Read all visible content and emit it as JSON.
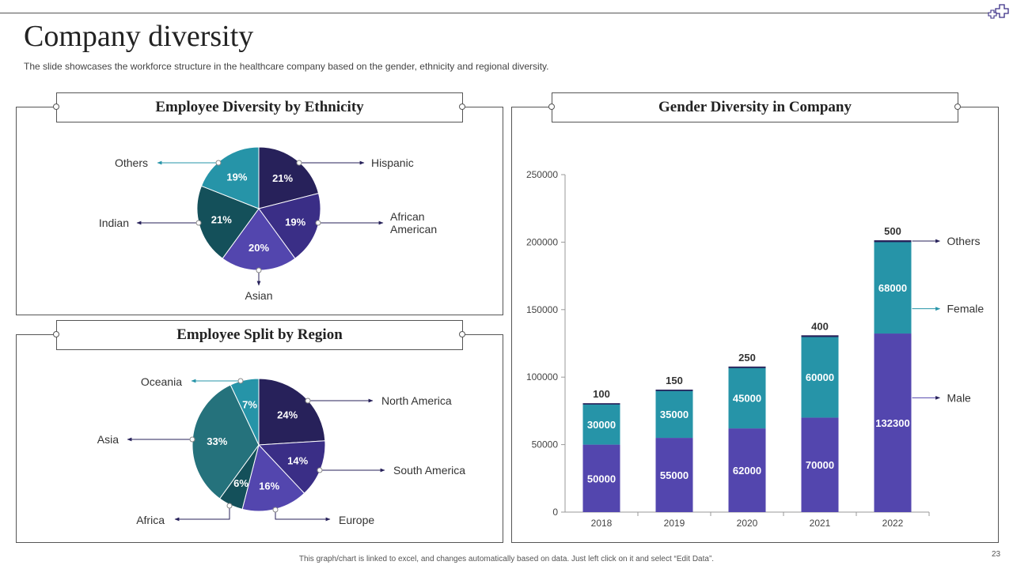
{
  "slide": {
    "title": "Company diversity",
    "subtitle": "The slide showcases the workforce structure in the healthcare company based on the gender, ethnicity and regional diversity.",
    "footer": "This graph/chart is linked to excel, and changes automatically based on data. Just left click on it and select “Edit Data”.",
    "page_number": "23"
  },
  "colors": {
    "navy": "#27215a",
    "indigo": "#3a2e86",
    "violet": "#5346ae",
    "teal": "#2694a8",
    "dark_teal": "#14505a",
    "mid_teal": "#25727c",
    "male": "#5346ae",
    "female": "#2694a8",
    "arrow_dark": "#27215a",
    "arrow_teal": "#2694a8"
  },
  "chart_data": [
    {
      "type": "pie",
      "title": "Employee Diversity by Ethnicity",
      "slices": [
        {
          "label": "Hispanic",
          "value": 21,
          "display": "21%"
        },
        {
          "label": "African American",
          "value": 19,
          "display": "19%"
        },
        {
          "label": "Asian",
          "value": 20,
          "display": "20%"
        },
        {
          "label": "Indian",
          "value": 21,
          "display": "21%"
        },
        {
          "label": "Others",
          "value": 19,
          "display": "19%"
        }
      ]
    },
    {
      "type": "pie",
      "title": "Employee Split by Region",
      "slices": [
        {
          "label": "North America",
          "value": 24,
          "display": "24%"
        },
        {
          "label": "South America",
          "value": 14,
          "display": "14%"
        },
        {
          "label": "Europe",
          "value": 16,
          "display": "16%"
        },
        {
          "label": "Africa",
          "value": 6,
          "display": "6%"
        },
        {
          "label": "Asia",
          "value": 33,
          "display": "33%"
        },
        {
          "label": "Oceania",
          "value": 7,
          "display": "7%"
        }
      ]
    },
    {
      "type": "bar",
      "stacked": true,
      "title": "Gender Diversity in Company",
      "categories": [
        "2018",
        "2019",
        "2020",
        "2021",
        "2022"
      ],
      "series": [
        {
          "name": "Male",
          "values": [
            50000,
            55000,
            62000,
            70000,
            132300
          ]
        },
        {
          "name": "Female",
          "values": [
            30000,
            35000,
            45000,
            60000,
            68000
          ]
        },
        {
          "name": "Others",
          "values": [
            100,
            150,
            250,
            400,
            500
          ]
        }
      ],
      "ylim": [
        0,
        250000
      ],
      "yticks": [
        0,
        50000,
        100000,
        150000,
        200000,
        250000
      ],
      "legend": [
        "Others",
        "Female",
        "Male"
      ],
      "legend_position": "right"
    }
  ]
}
